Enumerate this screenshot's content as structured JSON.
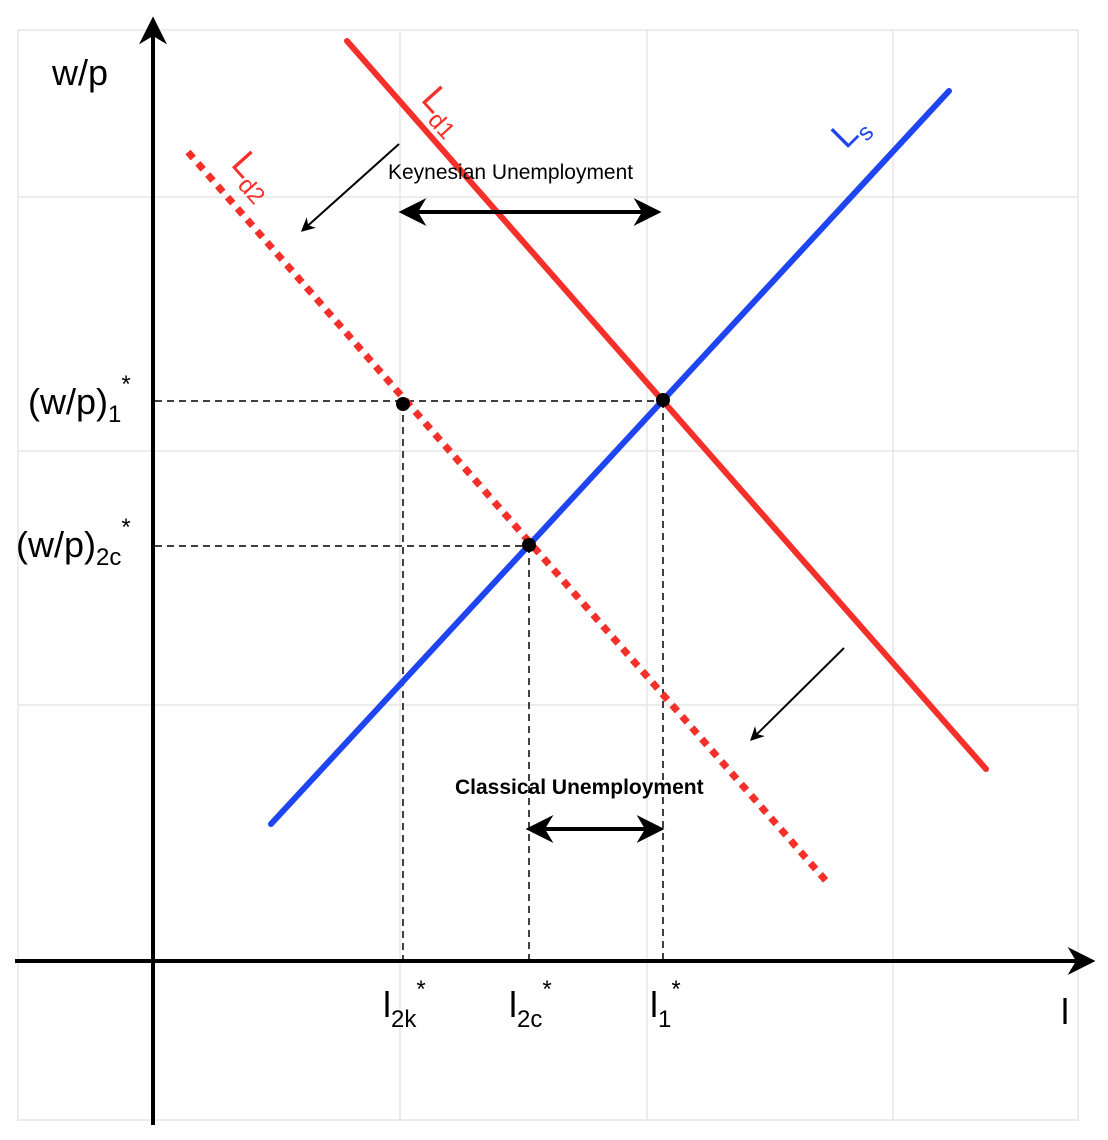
{
  "colors": {
    "demand": "#f5302a",
    "supply": "#1f45f0",
    "axis": "#000000",
    "grid": "#e6e6e6"
  },
  "axes": {
    "y_label": "w/p",
    "x_label": "l"
  },
  "curves": {
    "ld1": {
      "base": "L",
      "sub": "d1"
    },
    "ld2": {
      "base": "L",
      "sub": "d2"
    },
    "ls": {
      "base": "L",
      "sub": "s"
    }
  },
  "y_ticks": {
    "w1": {
      "base": "(w/p)",
      "sub": "1",
      "sup": "*"
    },
    "w2c": {
      "base": "(w/p)",
      "sub": "2c",
      "sup": "*"
    }
  },
  "x_ticks": {
    "l2k": {
      "base": "l",
      "sub": "2k",
      "sup": "*"
    },
    "l2c": {
      "base": "l",
      "sub": "2c",
      "sup": "*"
    },
    "l1": {
      "base": "l",
      "sub": "1",
      "sup": "*"
    }
  },
  "annotations": {
    "keynesian": "Keynesian Unemployment",
    "classical": "Classical Unemployment"
  }
}
